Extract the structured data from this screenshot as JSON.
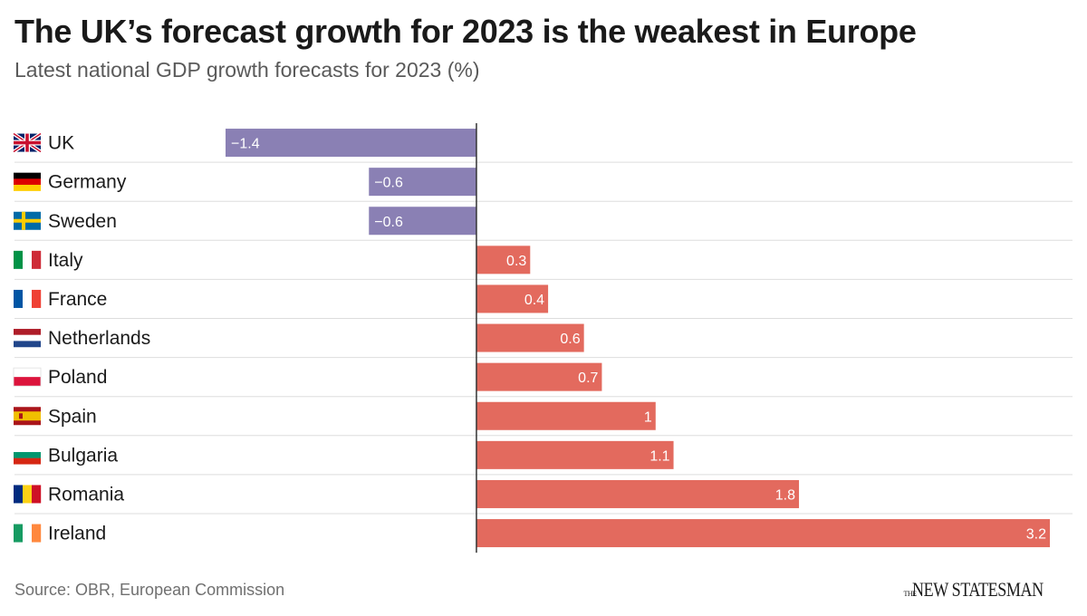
{
  "header": {
    "title": "The UK’s forecast growth for 2023 is the weakest in Europe",
    "subtitle": "Latest national GDP growth forecasts for 2023 (%)"
  },
  "footer": {
    "source": "Source: OBR, European Commission",
    "logo_small": "THE",
    "logo_main": "NEW STATESMAN"
  },
  "colors": {
    "negative": "#8a80b4",
    "positive": "#e36a5e",
    "axis": "#333333",
    "gridline": "#dddddd",
    "label_text": "#ffffff"
  },
  "chart_data": {
    "type": "bar",
    "orientation": "horizontal",
    "title": "The UK’s forecast growth for 2023 is the weakest in Europe",
    "subtitle": "Latest national GDP growth forecasts for 2023 (%)",
    "categories": [
      "UK",
      "Germany",
      "Sweden",
      "Italy",
      "France",
      "Netherlands",
      "Poland",
      "Spain",
      "Bulgaria",
      "Romania",
      "Ireland"
    ],
    "values": [
      -1.4,
      -0.6,
      -0.6,
      0.3,
      0.4,
      0.6,
      0.7,
      1,
      1.1,
      1.8,
      3.2
    ],
    "value_labels": [
      "−1.4",
      "−0.6",
      "−0.6",
      "0.3",
      "0.4",
      "0.6",
      "0.7",
      "1",
      "1.1",
      "1.8",
      "3.2"
    ],
    "flags": [
      "uk-flag",
      "germany-flag",
      "sweden-flag",
      "italy-flag",
      "france-flag",
      "netherlands-flag",
      "poland-flag",
      "spain-flag",
      "bulgaria-flag",
      "romania-flag",
      "ireland-flag"
    ],
    "xlim": [
      -1.4,
      3.2
    ],
    "xlabel": "",
    "ylabel": "",
    "grid": false
  }
}
